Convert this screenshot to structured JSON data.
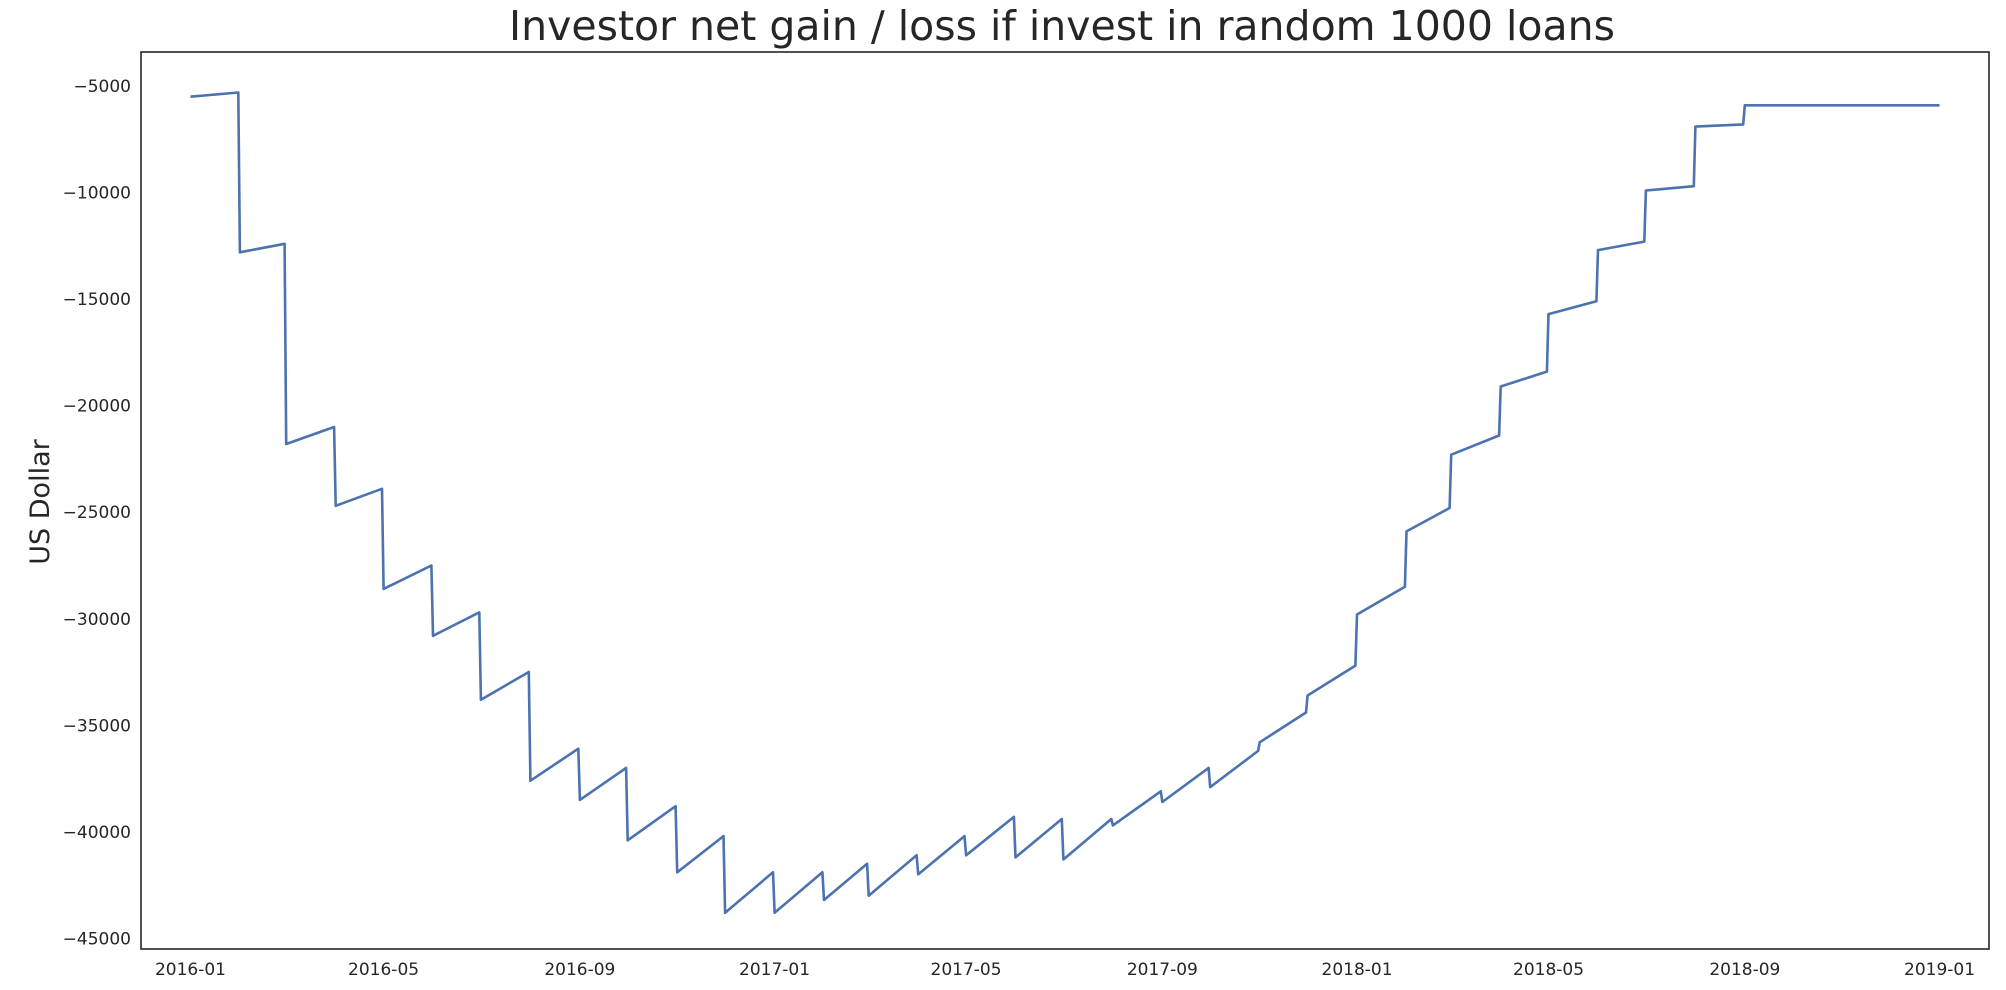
{
  "chart_data": {
    "type": "line",
    "title": "Investor net gain / loss if invest in random 1000 loans",
    "xlabel": "",
    "ylabel": "US Dollar",
    "grid": false,
    "legend": "none",
    "xlim": [
      "2015-12-01",
      "2019-02-01"
    ],
    "ylim": [
      -45500,
      -3400
    ],
    "x_ticks": [
      "2016-01-01",
      "2016-05-01",
      "2016-09-01",
      "2017-01-01",
      "2017-05-01",
      "2017-09-01",
      "2018-01-01",
      "2018-05-01",
      "2018-09-01",
      "2019-01-01"
    ],
    "x_tick_labels": [
      "2016-01",
      "2016-05",
      "2016-09",
      "2017-01",
      "2017-05",
      "2017-09",
      "2018-01",
      "2018-05",
      "2018-09",
      "2019-01"
    ],
    "y_ticks": [
      -5000,
      -10000,
      -15000,
      -20000,
      -25000,
      -30000,
      -35000,
      -40000,
      -45000
    ],
    "y_tick_labels": [
      "−5000",
      "−10000",
      "−15000",
      "−20000",
      "−25000",
      "−30000",
      "−35000",
      "−40000",
      "−45000"
    ],
    "colors": {
      "line": "#4c72b0"
    },
    "series": [
      {
        "x": [
          "2016-01-01",
          "2016-01-31",
          "2016-02-01",
          "2016-02-29",
          "2016-03-01",
          "2016-03-31",
          "2016-04-01",
          "2016-04-30",
          "2016-05-01",
          "2016-05-31",
          "2016-06-01",
          "2016-06-30",
          "2016-07-01",
          "2016-07-31",
          "2016-08-01",
          "2016-08-31",
          "2016-09-01",
          "2016-09-30",
          "2016-10-01",
          "2016-10-31",
          "2016-11-01",
          "2016-11-30",
          "2016-12-01",
          "2016-12-31",
          "2017-01-01",
          "2017-01-31",
          "2017-02-01",
          "2017-02-28",
          "2017-03-01",
          "2017-03-31",
          "2017-04-01",
          "2017-04-30",
          "2017-05-01",
          "2017-05-31",
          "2017-06-01",
          "2017-06-30",
          "2017-07-01",
          "2017-07-31",
          "2017-08-01",
          "2017-08-31",
          "2017-09-01",
          "2017-09-30",
          "2017-10-01",
          "2017-10-31",
          "2017-11-01",
          "2017-11-30",
          "2017-12-01",
          "2017-12-31",
          "2018-01-01",
          "2018-01-31",
          "2018-02-01",
          "2018-02-28",
          "2018-03-01",
          "2018-03-31",
          "2018-04-01",
          "2018-04-30",
          "2018-05-01",
          "2018-05-31",
          "2018-06-01",
          "2018-06-30",
          "2018-07-01",
          "2018-07-31",
          "2018-08-01",
          "2018-08-31",
          "2018-09-01",
          "2019-01-01"
        ],
        "y": [
          -5500,
          -5300,
          -12800,
          -12400,
          -21800,
          -21000,
          -24700,
          -23900,
          -28600,
          -27500,
          -30800,
          -29700,
          -33800,
          -32500,
          -37600,
          -36100,
          -38500,
          -37000,
          -40400,
          -38800,
          -41900,
          -40200,
          -43800,
          -41900,
          -43800,
          -41900,
          -43200,
          -41500,
          -43000,
          -41100,
          -42000,
          -40200,
          -41100,
          -39300,
          -41200,
          -39400,
          -41300,
          -39400,
          -39700,
          -38100,
          -38600,
          -37000,
          -37900,
          -36200,
          -35800,
          -34400,
          -33600,
          -32200,
          -29800,
          -28500,
          -25900,
          -24800,
          -22300,
          -21400,
          -19100,
          -18400,
          -15700,
          -15100,
          -12700,
          -12300,
          -9900,
          -9700,
          -6900,
          -6800,
          -5900,
          -5900
        ]
      }
    ]
  }
}
